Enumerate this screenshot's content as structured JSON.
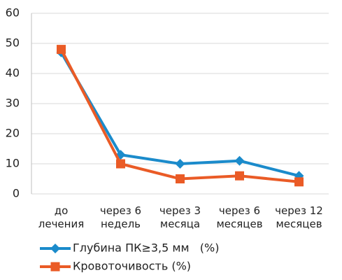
{
  "chart_data": {
    "type": "line",
    "categories": [
      "до лечения",
      "через 6 недель",
      "через 3 месяца",
      "через 6 месяцев",
      "через 12 месяцев"
    ],
    "series": [
      {
        "name": "Глубина ПК≥3,5 мм   (%)",
        "color": "#1b8bcb",
        "marker": "diamond",
        "values": [
          47,
          13,
          10,
          11,
          6
        ]
      },
      {
        "name": "Кровоточивость (%)",
        "color": "#ea5b26",
        "marker": "square",
        "values": [
          48,
          10,
          5,
          6,
          4
        ]
      }
    ],
    "ylim": [
      0,
      60
    ],
    "yticks": [
      0,
      10,
      20,
      30,
      40,
      50,
      60
    ],
    "grid": true,
    "legend": "bottom-left"
  }
}
